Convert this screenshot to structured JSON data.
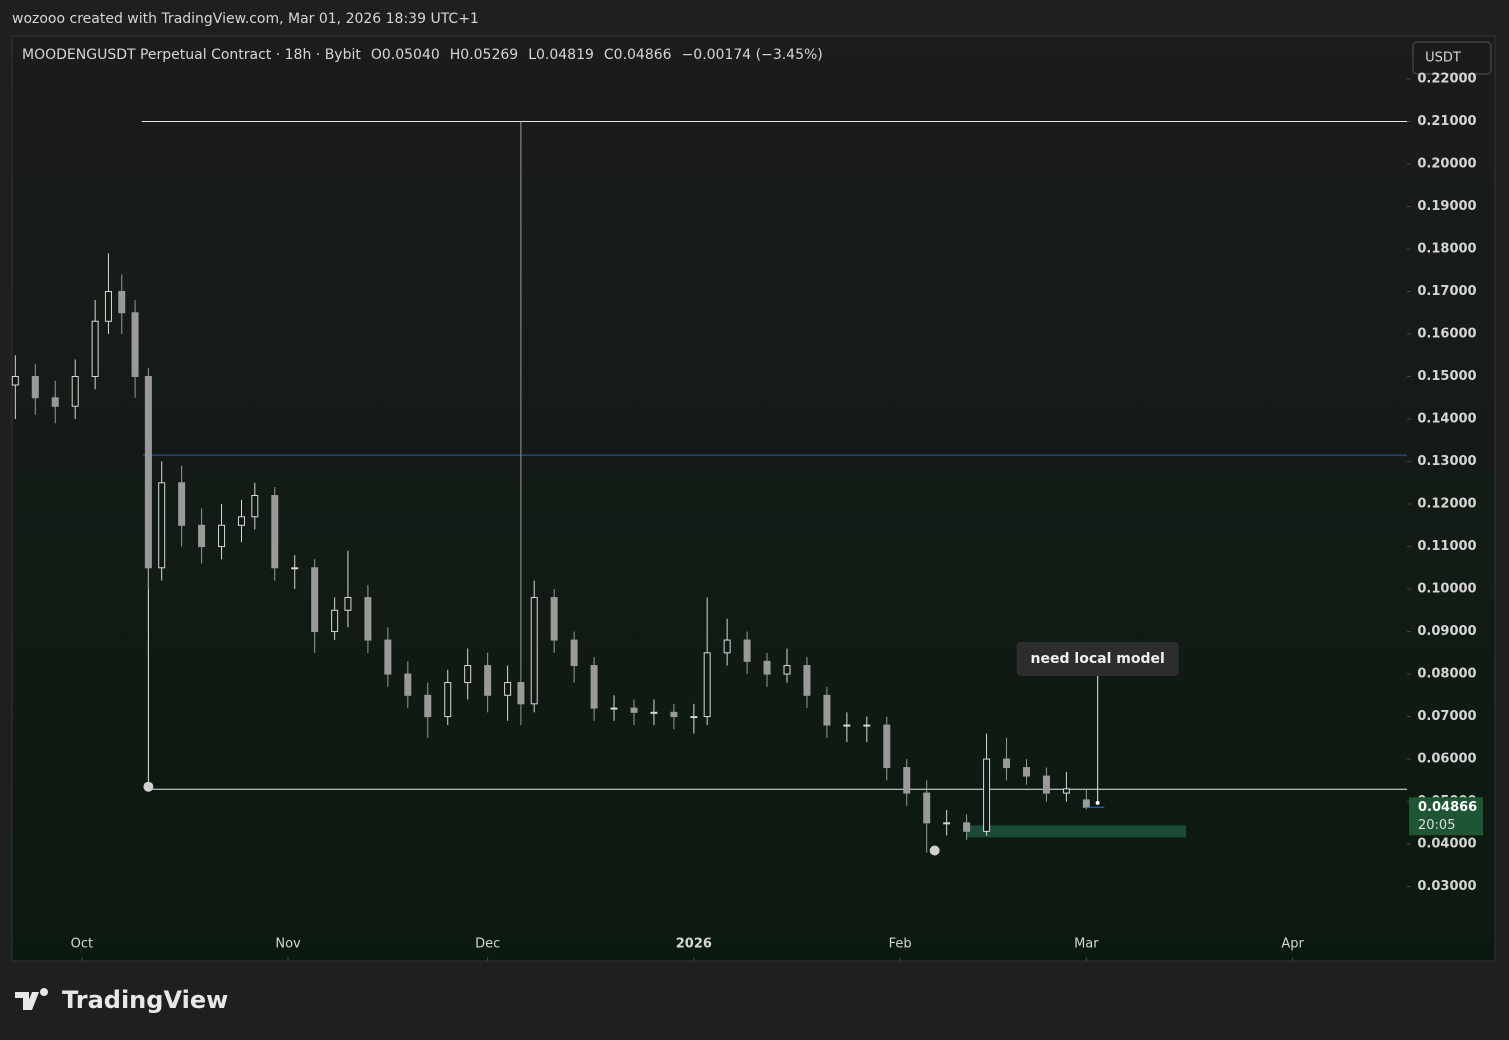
{
  "caption": "wozooo created with TradingView.com, Mar 01, 2026 18:39 UTC+1",
  "logo": "TradingView",
  "chart_data": {
    "type": "candlestick",
    "title": "MOODENGUSDT Perpetual Contract · 18h · Bybit",
    "legend_values": [
      "O0.05040",
      "H0.05269",
      "L0.04819",
      "C0.04866",
      "−0.00174 (−3.45%)"
    ],
    "currency": "USDT",
    "x": [
      -10,
      -7,
      -4,
      -1,
      2,
      4,
      6,
      8,
      10,
      12,
      15,
      18,
      21,
      24,
      26,
      29,
      32,
      35,
      38,
      40,
      43,
      46,
      49,
      52,
      55,
      58,
      61,
      64,
      66,
      68,
      71,
      74,
      77,
      80,
      83,
      86,
      89,
      92,
      94,
      97,
      100,
      103,
      106,
      109,
      112,
      115,
      118,
      121,
      124,
      127,
      130,
      133,
      136,
      139,
      142,
      145,
      148,
      151
    ],
    "open": [
      0.148,
      0.15,
      0.145,
      0.143,
      0.15,
      0.163,
      0.17,
      0.165,
      0.15,
      0.105,
      0.125,
      0.115,
      0.11,
      0.115,
      0.117,
      0.122,
      0.105,
      0.105,
      0.09,
      0.095,
      0.098,
      0.088,
      0.08,
      0.075,
      0.07,
      0.078,
      0.082,
      0.075,
      0.078,
      0.073,
      0.098,
      0.088,
      0.082,
      0.072,
      0.072,
      0.071,
      0.071,
      0.07,
      0.07,
      0.085,
      0.088,
      0.083,
      0.08,
      0.082,
      0.075,
      0.068,
      0.068,
      0.068,
      0.058,
      0.052,
      0.045,
      0.045,
      0.043,
      0.06,
      0.058,
      0.056,
      0.052,
      0.0504
    ],
    "high": [
      0.155,
      0.153,
      0.149,
      0.154,
      0.168,
      0.179,
      0.174,
      0.168,
      0.152,
      0.13,
      0.129,
      0.119,
      0.12,
      0.121,
      0.125,
      0.124,
      0.108,
      0.107,
      0.098,
      0.109,
      0.101,
      0.091,
      0.083,
      0.078,
      0.081,
      0.086,
      0.085,
      0.082,
      0.21,
      0.102,
      0.1,
      0.09,
      0.084,
      0.075,
      0.074,
      0.074,
      0.073,
      0.073,
      0.098,
      0.093,
      0.09,
      0.085,
      0.086,
      0.084,
      0.077,
      0.071,
      0.07,
      0.07,
      0.06,
      0.055,
      0.048,
      0.047,
      0.066,
      0.065,
      0.06,
      0.058,
      0.057,
      0.05269
    ],
    "low": [
      0.14,
      0.141,
      0.139,
      0.14,
      0.147,
      0.16,
      0.16,
      0.145,
      0.1,
      0.102,
      0.11,
      0.106,
      0.107,
      0.111,
      0.114,
      0.102,
      0.1,
      0.085,
      0.088,
      0.091,
      0.085,
      0.077,
      0.072,
      0.065,
      0.068,
      0.074,
      0.071,
      0.069,
      0.068,
      0.071,
      0.085,
      0.078,
      0.069,
      0.069,
      0.068,
      0.068,
      0.067,
      0.066,
      0.068,
      0.082,
      0.08,
      0.077,
      0.078,
      0.072,
      0.065,
      0.064,
      0.064,
      0.055,
      0.049,
      0.038,
      0.042,
      0.041,
      0.042,
      0.055,
      0.054,
      0.05,
      0.05,
      0.04819
    ],
    "close": [
      0.15,
      0.145,
      0.143,
      0.15,
      0.163,
      0.17,
      0.165,
      0.15,
      0.105,
      0.125,
      0.115,
      0.11,
      0.115,
      0.117,
      0.122,
      0.105,
      0.105,
      0.09,
      0.095,
      0.098,
      0.088,
      0.08,
      0.075,
      0.07,
      0.078,
      0.082,
      0.075,
      0.078,
      0.073,
      0.098,
      0.088,
      0.082,
      0.072,
      0.072,
      0.071,
      0.071,
      0.07,
      0.07,
      0.085,
      0.088,
      0.083,
      0.08,
      0.082,
      0.075,
      0.068,
      0.068,
      0.068,
      0.058,
      0.052,
      0.045,
      0.045,
      0.043,
      0.06,
      0.058,
      0.056,
      0.052,
      0.053,
      0.04866
    ],
    "up_color": "#d8d8d8",
    "down_color": "#9a9a9a",
    "xlim": [
      -10.5,
      199.2
    ],
    "xticks": [
      {
        "value": 0,
        "label": "Oct"
      },
      {
        "value": 31,
        "label": "Nov"
      },
      {
        "value": 61,
        "label": "Dec"
      },
      {
        "value": 92,
        "label": "2026"
      },
      {
        "value": 123,
        "label": "Feb"
      },
      {
        "value": 151,
        "label": "Mar"
      },
      {
        "value": 182,
        "label": "Apr"
      }
    ],
    "ylim": [
      0.0125,
      0.2301
    ],
    "yticks": [
      {
        "value": 0.03,
        "label": "0.03000"
      },
      {
        "value": 0.04,
        "label": "0.04000"
      },
      {
        "value": 0.05,
        "label": "0.05000"
      },
      {
        "value": 0.06,
        "label": "0.06000"
      },
      {
        "value": 0.07,
        "label": "0.07000"
      },
      {
        "value": 0.08,
        "label": "0.08000"
      },
      {
        "value": 0.09,
        "label": "0.09000"
      },
      {
        "value": 0.1,
        "label": "0.10000"
      },
      {
        "value": 0.11,
        "label": "0.11000"
      },
      {
        "value": 0.12,
        "label": "0.12000"
      },
      {
        "value": 0.13,
        "label": "0.13000"
      },
      {
        "value": 0.14,
        "label": "0.14000"
      },
      {
        "value": 0.15,
        "label": "0.15000"
      },
      {
        "value": 0.16,
        "label": "0.16000"
      },
      {
        "value": 0.17,
        "label": "0.17000"
      },
      {
        "value": 0.18,
        "label": "0.18000"
      },
      {
        "value": 0.19,
        "label": "0.19000"
      },
      {
        "value": 0.2,
        "label": "0.20000"
      },
      {
        "value": 0.21,
        "label": "0.21000"
      },
      {
        "value": 0.22,
        "label": "0.22000"
      }
    ],
    "last_price": 0.04866,
    "countdown": "20:05",
    "last_price_color": "#1e5535",
    "hlines": [
      {
        "value": 0.21,
        "from": 9,
        "color": "#e8e8e8"
      },
      {
        "value": 0.1315,
        "from": 9.2,
        "color": "#3a5a9a"
      },
      {
        "value": 0.0529,
        "from": 10,
        "color": "#e8e8e8"
      }
    ],
    "vline": {
      "x": 10,
      "y": [
        0.0535,
        0.1315
      ]
    },
    "dots": [
      {
        "x": 10,
        "y": 0.0535
      },
      {
        "x": 128.2,
        "y": 0.0385
      }
    ],
    "zone": {
      "x": [
        133,
        166
      ],
      "y": [
        0.0416,
        0.0444
      ],
      "color": "#1b4a36"
    },
    "annotation": {
      "text": "need local model",
      "x": 152.7,
      "y": 0.0497
    }
  }
}
